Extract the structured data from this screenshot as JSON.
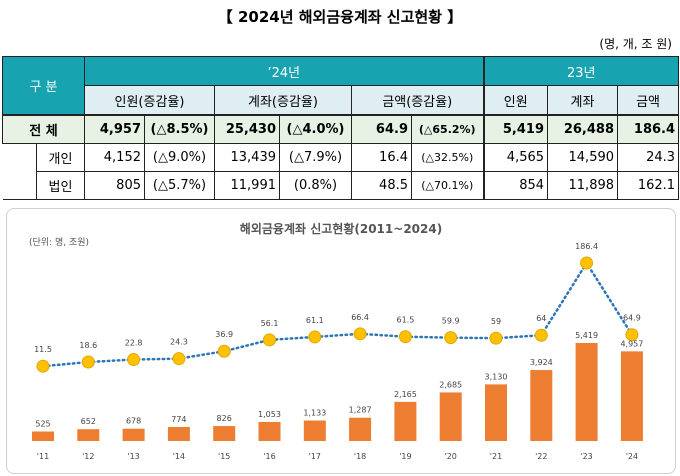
{
  "page": {
    "title": "【 2024년 해외금융계좌 신고현황 】",
    "unit_note": "(명, 개, 조 원)"
  },
  "table": {
    "header": {
      "category": "구 분",
      "year_2024": "’24년",
      "year_2023": "23년",
      "cols_2024": [
        "인원(증감율)",
        "계좌(증감율)",
        "금액(증감율)"
      ],
      "cols_2023": [
        "인원",
        "계좌",
        "금액"
      ]
    },
    "rows": [
      {
        "label": "전 체",
        "people": "4,957",
        "people_chg": "(△8.5%)",
        "accounts": "25,430",
        "accounts_chg": "(△4.0%)",
        "amount": "64.9",
        "amount_chg": "(△65.2%)",
        "p23": "5,419",
        "a23": "26,488",
        "m23": "186.4"
      },
      {
        "label": "개인",
        "people": "4,152",
        "people_chg": "(△9.0%)",
        "accounts": "13,439",
        "accounts_chg": "(△7.9%)",
        "amount": "16.4",
        "amount_chg": "(△32.5%)",
        "p23": "4,565",
        "a23": "14,590",
        "m23": "24.3"
      },
      {
        "label": "법인",
        "people": "805",
        "people_chg": "(△5.7%)",
        "accounts": "11,991",
        "accounts_chg": "(0.8%)",
        "amount": "48.5",
        "amount_chg": "(△70.1%)",
        "p23": "854",
        "a23": "11,898",
        "m23": "162.1"
      }
    ]
  },
  "colors": {
    "header_bg": "#17a3b0",
    "subheader_bg": "#dfeef3",
    "total_bg": "#e7f2e4",
    "bar": "#ed7d31",
    "line": "#2e75b6",
    "marker": "#ffc000"
  },
  "chart_data": {
    "type": "bar",
    "title": "해외금융계좌 신고현황(2011~2024)",
    "unit_label": "(단위: 명, 조원)",
    "categories": [
      "'11",
      "'12",
      "'13",
      "'14",
      "'15",
      "'16",
      "'17",
      "'18",
      "'19",
      "'20",
      "'21",
      "'22",
      "'23",
      "'24"
    ],
    "series": [
      {
        "type": "bar",
        "values": [
          525,
          652,
          678,
          774,
          826,
          1053,
          1133,
          1287,
          2165,
          2685,
          3130,
          3924,
          5419,
          4957
        ],
        "labels": [
          "525",
          "652",
          "678",
          "774",
          "826",
          "1,053",
          "1,133",
          "1,287",
          "2,165",
          "2,685",
          "3,130",
          "3,924",
          "5,419",
          "4,957"
        ]
      },
      {
        "type": "line",
        "values": [
          11.5,
          18.6,
          22.8,
          24.3,
          36.9,
          56.1,
          61.1,
          66.4,
          61.5,
          59.9,
          59,
          64,
          186.4,
          64.9
        ],
        "labels": [
          "11.5",
          "18.6",
          "22.8",
          "24.3",
          "36.9",
          "56.1",
          "61.1",
          "66.4",
          "61.5",
          "59.9",
          "59",
          "64",
          "186.4",
          "64.9"
        ]
      }
    ],
    "legend": "none",
    "grid": false
  }
}
